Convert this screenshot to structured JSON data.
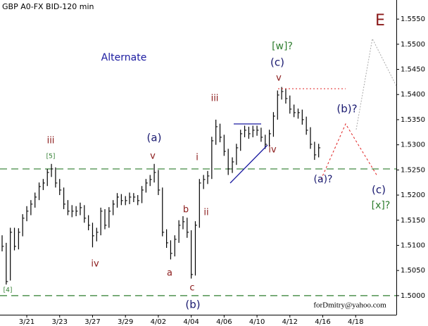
{
  "chart_data": {
    "type": "hlc",
    "title": "GBP A0-FX BID-120 min",
    "watermark": "forDmitry@yahoo.com",
    "categories": [
      null,
      null,
      null,
      null,
      null,
      null,
      "3/21",
      null,
      null,
      null,
      null,
      null,
      null,
      null,
      "3/23",
      null,
      null,
      null,
      null,
      null,
      null,
      null,
      "3/27",
      null,
      null,
      null,
      null,
      null,
      null,
      null,
      "3/29",
      null,
      null,
      null,
      null,
      null,
      null,
      null,
      "4/02",
      null,
      null,
      null,
      null,
      null,
      null,
      null,
      "4/04",
      null,
      null,
      null,
      null,
      null,
      null,
      null,
      "4/06",
      null,
      null,
      null,
      null,
      null,
      null,
      null,
      "4/10",
      null,
      null,
      null,
      null,
      null,
      null,
      null,
      "4/12",
      null,
      null,
      null,
      null,
      null,
      null,
      null,
      "4/16",
      null,
      null,
      null,
      null,
      null,
      null,
      null,
      "4/18",
      null,
      null,
      null,
      null,
      null,
      null,
      null,
      null,
      null
    ],
    "high": [
      1.512,
      1.5105,
      1.5135,
      1.5135,
      1.5134,
      1.5162,
      1.5178,
      1.519,
      1.5205,
      1.5225,
      1.5232,
      1.5252,
      1.5262,
      1.5255,
      1.5232,
      1.5215,
      1.519,
      1.518,
      1.5178,
      1.5185,
      1.518,
      1.516,
      1.5145,
      1.5135,
      1.5175,
      1.5172,
      1.5176,
      1.519,
      1.5204,
      1.5202,
      1.5198,
      1.5205,
      1.5204,
      1.52,
      1.5218,
      1.5232,
      1.524,
      1.5262,
      1.525,
      1.5215,
      1.5132,
      1.511,
      1.512,
      1.515,
      1.5158,
      1.5155,
      1.513,
      1.5148,
      1.5232,
      1.524,
      1.5248,
      1.5316,
      1.535,
      1.5342,
      1.532,
      1.5292,
      1.5275,
      1.5302,
      1.533,
      1.5338,
      1.5336,
      1.5338,
      1.5338,
      1.5334,
      1.532,
      1.533,
      1.5365,
      1.5408,
      1.5415,
      1.5412,
      1.5398,
      1.538,
      1.5372,
      1.537,
      1.5356,
      1.5335,
      1.5306,
      1.5302,
      null,
      null,
      null,
      null,
      null,
      null,
      null,
      null,
      null,
      null,
      null,
      null,
      null,
      null,
      null,
      null,
      null,
      null
    ],
    "low": [
      1.5088,
      1.5022,
      1.503,
      1.509,
      1.5092,
      1.5118,
      1.5148,
      1.516,
      1.5175,
      1.519,
      1.521,
      1.5218,
      1.5236,
      1.5215,
      1.52,
      1.5172,
      1.516,
      1.5156,
      1.5158,
      1.516,
      1.5145,
      1.513,
      1.5096,
      1.5108,
      1.512,
      1.5132,
      1.5135,
      1.516,
      1.5175,
      1.518,
      1.518,
      1.5182,
      1.5186,
      1.518,
      1.5184,
      1.5205,
      1.5218,
      1.5225,
      1.52,
      1.5118,
      1.5095,
      1.5072,
      1.5078,
      1.5105,
      1.5132,
      1.5115,
      1.5034,
      1.504,
      1.5135,
      1.5212,
      1.5222,
      1.5232,
      1.53,
      1.5305,
      1.5278,
      1.524,
      1.5244,
      1.526,
      1.5288,
      1.5315,
      1.5312,
      1.5315,
      1.5318,
      1.5306,
      1.5292,
      1.5296,
      1.5316,
      1.535,
      1.539,
      1.5382,
      1.5362,
      1.5355,
      1.5352,
      1.534,
      1.532,
      1.5292,
      1.527,
      1.5275,
      null,
      null,
      null,
      null,
      null,
      null,
      null,
      null,
      null,
      null,
      null,
      null,
      null,
      null,
      null,
      null,
      null,
      null
    ],
    "close": [
      1.5098,
      1.5028,
      1.5126,
      1.5098,
      1.5126,
      1.5154,
      1.5168,
      1.5182,
      1.5196,
      1.5217,
      1.5224,
      1.5245,
      1.5252,
      1.5224,
      1.521,
      1.5182,
      1.5168,
      1.5168,
      1.5168,
      1.5175,
      1.5154,
      1.514,
      1.5119,
      1.5126,
      1.5168,
      1.514,
      1.5168,
      1.5182,
      1.5196,
      1.5189,
      1.5189,
      1.5196,
      1.5196,
      1.5189,
      1.521,
      1.5224,
      1.5231,
      1.5245,
      1.521,
      1.5126,
      1.5105,
      1.5084,
      1.5112,
      1.514,
      1.5147,
      1.5126,
      1.5042,
      1.514,
      1.5224,
      1.5231,
      1.5238,
      1.5308,
      1.5336,
      1.5315,
      1.5287,
      1.5252,
      1.5266,
      1.5294,
      1.5322,
      1.5329,
      1.5322,
      1.5329,
      1.5329,
      1.5315,
      1.5301,
      1.5322,
      1.5357,
      1.5399,
      1.5406,
      1.5392,
      1.5371,
      1.5364,
      1.5364,
      1.535,
      1.5329,
      1.5301,
      1.528,
      1.5294,
      null,
      null,
      null,
      null,
      null,
      null,
      null,
      null,
      null,
      null,
      null,
      null,
      null,
      null,
      null,
      null,
      null,
      null
    ],
    "color": "#000000",
    "ylim": [
      1.4962,
      1.5588
    ],
    "yticks": [
      {
        "value": 1.5,
        "label": "1.5000"
      },
      {
        "value": 1.505,
        "label": "1.5050"
      },
      {
        "value": 1.51,
        "label": "1.5100"
      },
      {
        "value": 1.515,
        "label": "1.5150"
      },
      {
        "value": 1.52,
        "label": "1.5200"
      },
      {
        "value": 1.525,
        "label": "1.5250"
      },
      {
        "value": 1.53,
        "label": "1.5300"
      },
      {
        "value": 1.535,
        "label": "1.5350"
      },
      {
        "value": 1.54,
        "label": "1.5400"
      },
      {
        "value": 1.545,
        "label": "1.5450"
      },
      {
        "value": 1.55,
        "label": "1.5500"
      },
      {
        "value": 1.555,
        "label": "1.5550"
      }
    ],
    "levels": [
      1.5252,
      1.5
    ],
    "level_color": "#2e7d2e",
    "annotations": [
      {
        "text": "Alternate",
        "color": "#1a1aa0"
      },
      {
        "text": "iii",
        "color": "#8b1a1a"
      },
      {
        "text": "[5]",
        "color": "#2e7d2e"
      },
      {
        "text": "[4]",
        "color": "#2e7d2e"
      },
      {
        "text": "iv",
        "color": "#8b1a1a"
      },
      {
        "text": "(a)",
        "color": "#1a1a70"
      },
      {
        "text": "v",
        "color": "#8b1a1a"
      },
      {
        "text": "a",
        "color": "#8b1a1a"
      },
      {
        "text": "b",
        "color": "#8b1a1a"
      },
      {
        "text": "c",
        "color": "#8b1a1a"
      },
      {
        "text": "(b)",
        "color": "#1a1a70"
      },
      {
        "text": "i",
        "color": "#8b1a1a"
      },
      {
        "text": "ii",
        "color": "#8b1a1a"
      },
      {
        "text": "iii",
        "color": "#8b1a1a"
      },
      {
        "text": "iv",
        "color": "#8b1a1a"
      },
      {
        "text": "v",
        "color": "#8b1a1a"
      },
      {
        "text": "(c)",
        "color": "#1a1a70"
      },
      {
        "text": "[w]?",
        "color": "#2e7d2e"
      },
      {
        "text": "(a)?",
        "color": "#1a1a70"
      },
      {
        "text": "(b)?",
        "color": "#1a1a70"
      },
      {
        "text": "(c)",
        "color": "#1a1a70"
      },
      {
        "text": "[x]?",
        "color": "#2e7d2e"
      },
      {
        "text": "E",
        "color": "#8b1a1a"
      }
    ]
  }
}
